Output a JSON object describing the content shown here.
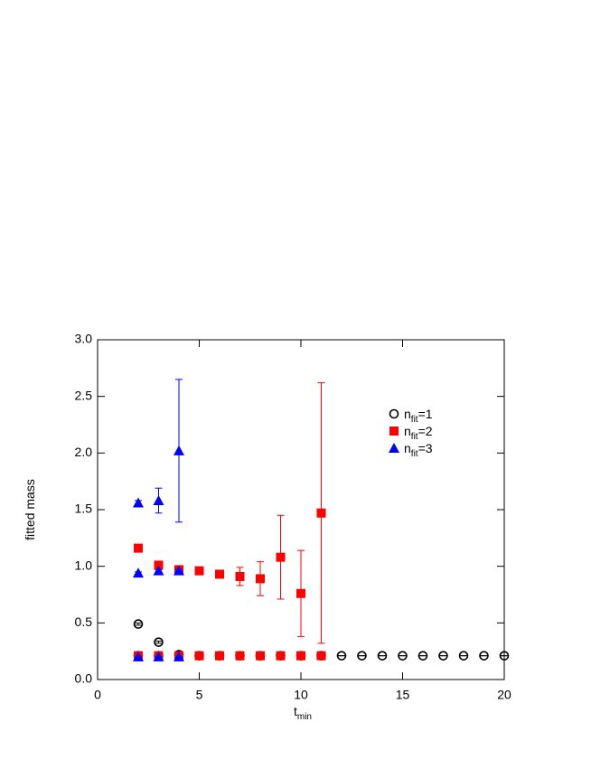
{
  "chart_data": {
    "type": "scatter",
    "xlabel": "t",
    "xlabel_sub": "min",
    "ylabel": "fitted mass",
    "xlim": [
      0,
      20
    ],
    "xticks": [
      0,
      5,
      10,
      15,
      20
    ],
    "ylim": [
      0,
      3.0
    ],
    "yticks": [
      {
        "value": 0,
        "label": "0.0"
      },
      {
        "value": 0.5,
        "label": "0.5"
      },
      {
        "value": 1,
        "label": "1.0"
      },
      {
        "value": 1.5,
        "label": "1.5"
      },
      {
        "value": 2,
        "label": "2.0"
      },
      {
        "value": 2.5,
        "label": "2.5"
      },
      {
        "value": 3,
        "label": "3.0"
      }
    ],
    "series": [
      {
        "name": "n",
        "name_sub": "fit",
        "name_rest": "=1",
        "color": "#000000",
        "marker": "circle",
        "x": [
          2,
          3,
          4,
          2,
          3,
          5,
          6,
          7,
          8,
          9,
          10,
          11,
          12,
          13,
          14,
          15,
          16,
          17,
          18,
          19,
          20
        ],
        "values": [
          0.49,
          0.33,
          0.22,
          0.21,
          0.21,
          0.21,
          0.21,
          0.21,
          0.21,
          0.21,
          0.21,
          0.21,
          0.21,
          0.21,
          0.21,
          0.21,
          0.21,
          0.21,
          0.21,
          0.21,
          0.21
        ],
        "errors": [
          0.01,
          0.01,
          0.01,
          0,
          0,
          0,
          0,
          0,
          0,
          0,
          0,
          0,
          0,
          0,
          0,
          0,
          0,
          0,
          0,
          0,
          0
        ]
      },
      {
        "name": "n",
        "name_sub": "fit",
        "name_rest": "=2",
        "color": "#ff0000",
        "marker": "square",
        "x": [
          2,
          3,
          4,
          5,
          6,
          7,
          8,
          9,
          10,
          11,
          2,
          3,
          4,
          5,
          6,
          7,
          8,
          9,
          10,
          11
        ],
        "values": [
          0.21,
          0.21,
          0.21,
          0.21,
          0.21,
          0.21,
          0.21,
          0.21,
          0.21,
          0.21,
          1.16,
          1.01,
          0.97,
          0.96,
          0.93,
          0.91,
          0.89,
          1.08,
          0.76,
          1.47
        ],
        "errors": [
          0,
          0,
          0,
          0,
          0,
          0,
          0,
          0,
          0,
          0,
          0.01,
          0.01,
          0.01,
          0.01,
          0.03,
          0.08,
          0.15,
          0.37,
          0.38,
          1.15
        ]
      },
      {
        "name": "n",
        "name_sub": "fit",
        "name_rest": "=3",
        "color": "#0000ff",
        "marker": "triangle",
        "x": [
          2,
          3,
          4,
          2,
          3,
          4,
          2,
          3,
          4
        ],
        "values": [
          0.2,
          0.2,
          0.2,
          0.94,
          0.96,
          0.96,
          1.56,
          1.58,
          2.02
        ],
        "errors": [
          0,
          0,
          0,
          0.01,
          0.01,
          0.01,
          0.02,
          0.11,
          0.63
        ]
      }
    ]
  }
}
